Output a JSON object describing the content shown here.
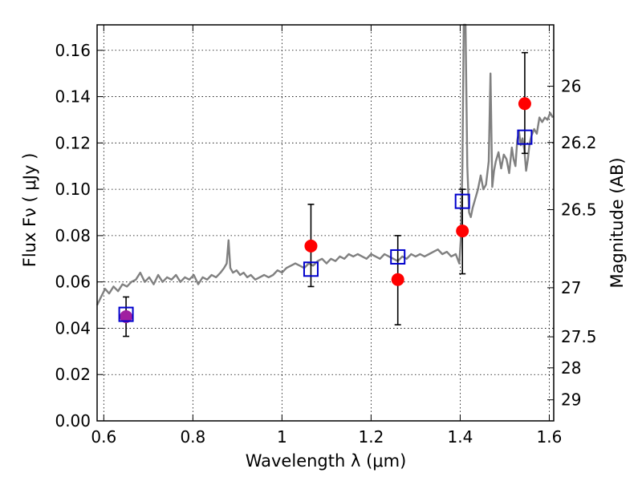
{
  "chart_data": {
    "type": "scatter",
    "xlabel": "Wavelength  λ (μm)",
    "ylabel": "Flux  Fν  ( μJy )",
    "ylabel_right": "Magnitude (AB)",
    "xlim": [
      0.585,
      1.61
    ],
    "ylim": [
      0.0,
      0.171
    ],
    "grid": true,
    "x_ticks": [
      0.6,
      0.8,
      1.0,
      1.2,
      1.4,
      1.6
    ],
    "x_tick_labels": [
      "0.6",
      "0.8",
      "1",
      "1.2",
      "1.4",
      "1.6"
    ],
    "y_ticks": [
      0.0,
      0.02,
      0.04,
      0.06,
      0.08,
      0.1,
      0.12,
      0.14,
      0.16
    ],
    "y_tick_labels": [
      "0.00",
      "0.02",
      "0.04",
      "0.06",
      "0.08",
      "0.10",
      "0.12",
      "0.14",
      "0.16"
    ],
    "right_ticks": [
      {
        "label": "26",
        "flux": 0.1445
      },
      {
        "label": "26.2",
        "flux": 0.1202
      },
      {
        "label": "26.5",
        "flux": 0.0912
      },
      {
        "label": "27",
        "flux": 0.0575
      },
      {
        "label": "27.5",
        "flux": 0.0363
      },
      {
        "label": "28",
        "flux": 0.0229
      },
      {
        "label": "29",
        "flux": 0.0091
      }
    ],
    "spectrum": {
      "name": "model spectrum",
      "color": "#808080",
      "x": [
        0.585,
        0.595,
        0.603,
        0.612,
        0.622,
        0.632,
        0.642,
        0.652,
        0.662,
        0.672,
        0.682,
        0.692,
        0.702,
        0.712,
        0.722,
        0.732,
        0.742,
        0.752,
        0.762,
        0.772,
        0.782,
        0.792,
        0.802,
        0.812,
        0.822,
        0.832,
        0.842,
        0.852,
        0.862,
        0.87,
        0.876,
        0.88,
        0.884,
        0.89,
        0.898,
        0.906,
        0.914,
        0.922,
        0.93,
        0.94,
        0.95,
        0.96,
        0.97,
        0.98,
        0.99,
        1.0,
        1.01,
        1.02,
        1.03,
        1.04,
        1.05,
        1.06,
        1.07,
        1.08,
        1.09,
        1.1,
        1.11,
        1.12,
        1.13,
        1.14,
        1.15,
        1.16,
        1.17,
        1.18,
        1.19,
        1.2,
        1.21,
        1.22,
        1.23,
        1.24,
        1.25,
        1.26,
        1.27,
        1.28,
        1.29,
        1.3,
        1.31,
        1.32,
        1.33,
        1.34,
        1.35,
        1.36,
        1.37,
        1.38,
        1.39,
        1.398,
        1.402,
        1.405,
        1.408,
        1.412,
        1.416,
        1.42,
        1.424,
        1.428,
        1.434,
        1.44,
        1.446,
        1.452,
        1.458,
        1.464,
        1.468,
        1.472,
        1.476,
        1.48,
        1.486,
        1.492,
        1.498,
        1.504,
        1.51,
        1.516,
        1.52,
        1.524,
        1.528,
        1.532,
        1.536,
        1.54,
        1.544,
        1.548,
        1.552,
        1.556,
        1.56,
        1.566,
        1.572,
        1.578,
        1.584,
        1.59,
        1.596,
        1.602,
        1.608
      ],
      "y": [
        0.05,
        0.054,
        0.057,
        0.055,
        0.058,
        0.056,
        0.059,
        0.058,
        0.06,
        0.061,
        0.064,
        0.06,
        0.062,
        0.059,
        0.063,
        0.06,
        0.062,
        0.061,
        0.063,
        0.06,
        0.062,
        0.061,
        0.063,
        0.059,
        0.062,
        0.061,
        0.063,
        0.062,
        0.064,
        0.066,
        0.068,
        0.078,
        0.066,
        0.064,
        0.065,
        0.063,
        0.064,
        0.062,
        0.063,
        0.061,
        0.062,
        0.063,
        0.062,
        0.063,
        0.065,
        0.064,
        0.066,
        0.067,
        0.068,
        0.067,
        0.066,
        0.068,
        0.067,
        0.069,
        0.07,
        0.068,
        0.07,
        0.069,
        0.071,
        0.07,
        0.072,
        0.071,
        0.072,
        0.071,
        0.07,
        0.072,
        0.071,
        0.07,
        0.072,
        0.071,
        0.07,
        0.069,
        0.071,
        0.07,
        0.072,
        0.071,
        0.072,
        0.071,
        0.072,
        0.073,
        0.074,
        0.072,
        0.073,
        0.071,
        0.072,
        0.068,
        0.08,
        0.11,
        0.171,
        0.171,
        0.11,
        0.09,
        0.088,
        0.092,
        0.096,
        0.1,
        0.106,
        0.1,
        0.102,
        0.112,
        0.15,
        0.101,
        0.108,
        0.112,
        0.116,
        0.109,
        0.115,
        0.113,
        0.107,
        0.118,
        0.113,
        0.11,
        0.121,
        0.125,
        0.119,
        0.122,
        0.117,
        0.108,
        0.113,
        0.12,
        0.123,
        0.126,
        0.124,
        0.131,
        0.129,
        0.131,
        0.13,
        0.133,
        0.131
      ]
    },
    "points": [
      {
        "name": "observed-photometry",
        "color": "#ff0000",
        "x": [
          0.65,
          1.065,
          1.26,
          1.405,
          1.545
        ],
        "y": [
          0.045,
          0.0755,
          0.061,
          0.082,
          0.137
        ]
      },
      {
        "name": "model-photometry",
        "color": "#0000cc",
        "x": [
          0.65,
          1.065,
          1.26,
          1.405,
          1.545
        ],
        "y": [
          0.046,
          0.0655,
          0.0708,
          0.0948,
          0.1225
        ]
      }
    ],
    "error_bars": {
      "x": [
        0.65,
        1.065,
        1.26,
        1.405,
        1.545
      ],
      "low": [
        0.0365,
        0.058,
        0.0415,
        0.0635,
        0.1155
      ],
      "high": [
        0.0535,
        0.0935,
        0.08,
        0.1,
        0.159
      ]
    },
    "colors": {
      "overlap_point": "#a020a0",
      "error_bar": "#000000",
      "grid": "#000000"
    }
  }
}
